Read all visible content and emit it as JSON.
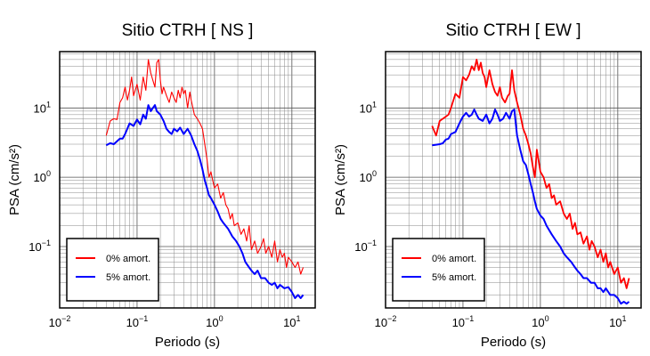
{
  "chart_data": [
    {
      "type": "line",
      "title": "Sitio CTRH [ NS ]",
      "xlabel": "Periodo (s)",
      "ylabel": "PSA (cm/s²)",
      "x_scale": "log",
      "y_scale": "log",
      "xlim": [
        0.01,
        20
      ],
      "ylim": [
        0.013,
        65
      ],
      "grid": true,
      "legend_placement": "bottom-left",
      "x_ticks": [
        {
          "value": 0.01,
          "base": "10",
          "exp": "−2"
        },
        {
          "value": 0.1,
          "base": "10",
          "exp": "−1"
        },
        {
          "value": 1,
          "base": "10",
          "exp": "0"
        },
        {
          "value": 10,
          "base": "10",
          "exp": "1"
        }
      ],
      "y_ticks": [
        {
          "value": 0.1,
          "base": "10",
          "exp": "−1"
        },
        {
          "value": 1,
          "base": "10",
          "exp": "0"
        },
        {
          "value": 10,
          "base": "10",
          "exp": "1"
        }
      ],
      "series": [
        {
          "name": "0% amort.",
          "color": "#ff0000",
          "x": [
            0.04,
            0.045,
            0.05,
            0.055,
            0.06,
            0.065,
            0.07,
            0.075,
            0.08,
            0.085,
            0.09,
            0.1,
            0.11,
            0.12,
            0.13,
            0.14,
            0.15,
            0.16,
            0.17,
            0.18,
            0.19,
            0.2,
            0.21,
            0.22,
            0.24,
            0.26,
            0.28,
            0.3,
            0.32,
            0.34,
            0.36,
            0.38,
            0.4,
            0.42,
            0.45,
            0.48,
            0.5,
            0.55,
            0.6,
            0.65,
            0.7,
            0.75,
            0.8,
            0.85,
            0.9,
            0.95,
            1.0,
            1.1,
            1.2,
            1.3,
            1.4,
            1.5,
            1.6,
            1.7,
            1.8,
            2.0,
            2.2,
            2.4,
            2.6,
            2.8,
            3.0,
            3.3,
            3.6,
            4.0,
            4.3,
            4.6,
            5.0,
            5.5,
            6.0,
            6.5,
            7.0,
            7.5,
            8.0,
            8.5,
            9.0,
            10.0,
            11.0,
            12.0,
            13.0,
            14.0
          ],
          "y": [
            4.0,
            6.5,
            7.0,
            6.8,
            12.0,
            14.0,
            20.0,
            13.0,
            18.0,
            28.0,
            15.0,
            22.0,
            13.0,
            28.0,
            18.0,
            50.0,
            32.0,
            25.0,
            20.0,
            45.0,
            50.0,
            25.0,
            16.0,
            20.0,
            15.0,
            12.0,
            17.0,
            14.0,
            12.0,
            18.0,
            14.0,
            20.0,
            16.0,
            18.0,
            10.0,
            17.0,
            13.0,
            8.0,
            7.0,
            6.0,
            5.0,
            3.0,
            1.8,
            1.0,
            1.2,
            0.9,
            0.7,
            0.8,
            0.5,
            0.6,
            0.4,
            0.35,
            0.25,
            0.3,
            0.2,
            0.22,
            0.15,
            0.18,
            0.12,
            0.2,
            0.09,
            0.12,
            0.08,
            0.1,
            0.13,
            0.08,
            0.1,
            0.07,
            0.12,
            0.06,
            0.09,
            0.07,
            0.08,
            0.05,
            0.07,
            0.06,
            0.05,
            0.06,
            0.04,
            0.05
          ]
        },
        {
          "name": "5% amort.",
          "color": "#0000ff",
          "x": [
            0.04,
            0.045,
            0.05,
            0.055,
            0.06,
            0.065,
            0.07,
            0.08,
            0.09,
            0.1,
            0.11,
            0.12,
            0.13,
            0.14,
            0.15,
            0.16,
            0.17,
            0.18,
            0.2,
            0.22,
            0.24,
            0.26,
            0.28,
            0.3,
            0.33,
            0.36,
            0.4,
            0.45,
            0.5,
            0.55,
            0.6,
            0.65,
            0.7,
            0.75,
            0.8,
            0.85,
            0.9,
            1.0,
            1.1,
            1.2,
            1.3,
            1.5,
            1.7,
            1.9,
            2.1,
            2.3,
            2.5,
            2.8,
            3.0,
            3.3,
            3.6,
            4.0,
            4.5,
            5.0,
            5.5,
            6.0,
            6.5,
            7.0,
            8.0,
            9.0,
            10.0,
            11.0,
            12.0,
            13.0,
            14.0
          ],
          "y": [
            2.9,
            3.1,
            3.0,
            3.3,
            3.6,
            3.6,
            4.2,
            6.0,
            5.5,
            6.8,
            5.8,
            8.0,
            7.0,
            11.0,
            9.0,
            10.0,
            11.0,
            9.0,
            8.0,
            6.5,
            5.0,
            4.5,
            4.2,
            5.0,
            4.6,
            5.2,
            4.2,
            5.0,
            4.0,
            3.0,
            2.4,
            1.8,
            1.3,
            0.9,
            0.7,
            0.55,
            0.5,
            0.4,
            0.32,
            0.25,
            0.22,
            0.18,
            0.14,
            0.12,
            0.1,
            0.08,
            0.06,
            0.05,
            0.045,
            0.04,
            0.045,
            0.035,
            0.035,
            0.03,
            0.028,
            0.03,
            0.025,
            0.028,
            0.025,
            0.026,
            0.022,
            0.018,
            0.02,
            0.018,
            0.02
          ]
        }
      ]
    },
    {
      "type": "line",
      "title": "Sitio CTRH [ EW ]",
      "xlabel": "Periodo (s)",
      "ylabel": "PSA (cm/s²)",
      "x_scale": "log",
      "y_scale": "log",
      "xlim": [
        0.01,
        20
      ],
      "ylim": [
        0.013,
        65
      ],
      "grid": true,
      "legend_placement": "bottom-left",
      "x_ticks": [
        {
          "value": 0.01,
          "base": "10",
          "exp": "−2"
        },
        {
          "value": 0.1,
          "base": "10",
          "exp": "−1"
        },
        {
          "value": 1,
          "base": "10",
          "exp": "0"
        },
        {
          "value": 10,
          "base": "10",
          "exp": "1"
        }
      ],
      "y_ticks": [
        {
          "value": 0.1,
          "base": "10",
          "exp": "−1"
        },
        {
          "value": 1,
          "base": "10",
          "exp": "0"
        },
        {
          "value": 10,
          "base": "10",
          "exp": "1"
        }
      ],
      "series": [
        {
          "name": "0% amort.",
          "color": "#ff0000",
          "x": [
            0.04,
            0.045,
            0.05,
            0.055,
            0.06,
            0.065,
            0.07,
            0.08,
            0.09,
            0.1,
            0.11,
            0.12,
            0.13,
            0.14,
            0.15,
            0.16,
            0.17,
            0.18,
            0.19,
            0.2,
            0.22,
            0.24,
            0.26,
            0.28,
            0.3,
            0.32,
            0.35,
            0.38,
            0.4,
            0.43,
            0.46,
            0.5,
            0.55,
            0.6,
            0.65,
            0.7,
            0.75,
            0.8,
            0.85,
            0.9,
            1.0,
            1.1,
            1.2,
            1.3,
            1.4,
            1.5,
            1.6,
            1.8,
            2.0,
            2.2,
            2.4,
            2.6,
            2.8,
            3.0,
            3.3,
            3.6,
            4.0,
            4.3,
            4.6,
            5.0,
            5.5,
            6.0,
            6.5,
            7.0,
            7.5,
            8.0,
            9.0,
            10.0,
            11.0,
            12.0,
            13.0,
            14.0
          ],
          "y": [
            5.5,
            4.0,
            6.5,
            7.0,
            7.5,
            8.0,
            10.0,
            16.0,
            14.0,
            28.0,
            25.0,
            30.0,
            40.0,
            35.0,
            50.0,
            35.0,
            45.0,
            32.0,
            28.0,
            20.0,
            35.0,
            22.0,
            17.0,
            15.0,
            20.0,
            14.0,
            12.0,
            15.0,
            16.0,
            35.0,
            18.0,
            12.0,
            8.0,
            5.0,
            4.0,
            3.0,
            2.2,
            1.4,
            1.0,
            2.5,
            1.2,
            1.0,
            0.7,
            0.8,
            0.5,
            0.55,
            0.4,
            0.45,
            0.3,
            0.25,
            0.3,
            0.18,
            0.22,
            0.15,
            0.16,
            0.11,
            0.14,
            0.09,
            0.12,
            0.1,
            0.07,
            0.09,
            0.06,
            0.08,
            0.05,
            0.06,
            0.04,
            0.05,
            0.03,
            0.035,
            0.025,
            0.035
          ]
        },
        {
          "name": "5% amort.",
          "color": "#0000ff",
          "x": [
            0.04,
            0.045,
            0.05,
            0.055,
            0.06,
            0.065,
            0.07,
            0.08,
            0.09,
            0.1,
            0.11,
            0.12,
            0.13,
            0.14,
            0.15,
            0.16,
            0.18,
            0.2,
            0.22,
            0.24,
            0.26,
            0.28,
            0.3,
            0.33,
            0.36,
            0.4,
            0.43,
            0.46,
            0.5,
            0.55,
            0.6,
            0.65,
            0.7,
            0.75,
            0.8,
            0.85,
            0.9,
            1.0,
            1.1,
            1.2,
            1.4,
            1.6,
            1.8,
            2.0,
            2.2,
            2.5,
            2.8,
            3.0,
            3.3,
            3.6,
            4.0,
            4.5,
            5.0,
            5.5,
            6.0,
            6.5,
            7.0,
            8.0,
            9.0,
            10.0,
            11.0,
            12.0,
            13.0,
            14.0
          ],
          "y": [
            2.9,
            2.95,
            3.0,
            3.1,
            3.5,
            3.6,
            4.2,
            4.5,
            6.0,
            7.5,
            8.5,
            7.5,
            8.0,
            9.5,
            8.0,
            7.0,
            6.5,
            8.0,
            6.0,
            7.0,
            9.5,
            8.0,
            6.5,
            7.0,
            8.5,
            7.0,
            9.0,
            9.5,
            4.0,
            2.5,
            1.7,
            1.5,
            1.1,
            0.8,
            0.6,
            0.45,
            0.35,
            0.28,
            0.25,
            0.2,
            0.15,
            0.12,
            0.1,
            0.08,
            0.07,
            0.06,
            0.05,
            0.045,
            0.04,
            0.035,
            0.035,
            0.03,
            0.03,
            0.025,
            0.025,
            0.022,
            0.025,
            0.02,
            0.02,
            0.018,
            0.015,
            0.016,
            0.015,
            0.016
          ]
        }
      ]
    }
  ]
}
